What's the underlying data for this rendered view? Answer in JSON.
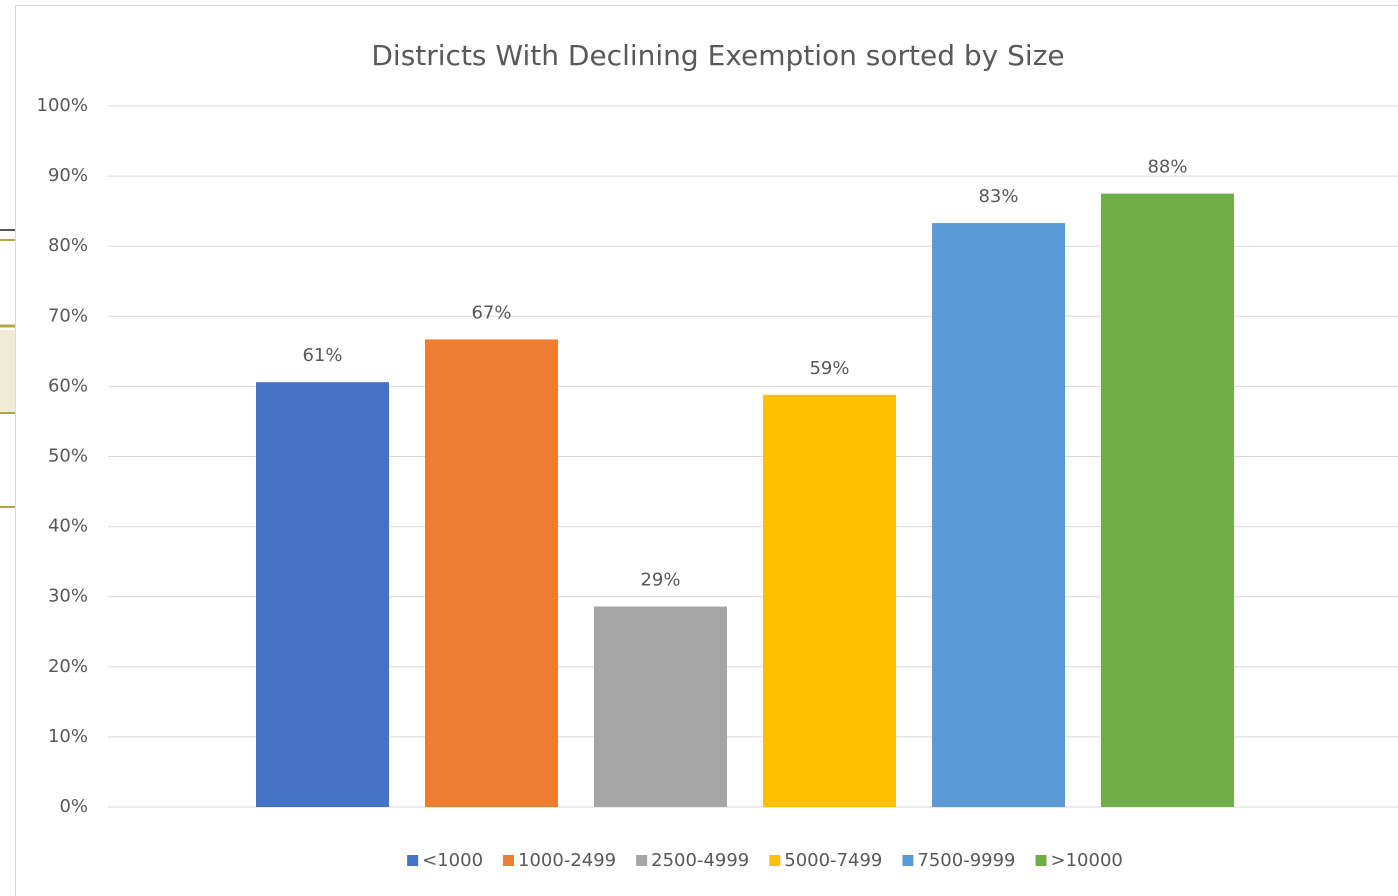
{
  "chart_data": {
    "type": "bar",
    "title": "Districts With Declining Exemption sorted by Size",
    "categories": [
      null
    ],
    "series": [
      {
        "name": "<1000",
        "color": "#4472c4",
        "values": [
          60.6
        ],
        "value_labels": [
          "61%"
        ]
      },
      {
        "name": "1000-2499",
        "color": "#ed7d31",
        "values": [
          66.7
        ],
        "value_labels": [
          "67%"
        ]
      },
      {
        "name": "2500-4999",
        "color": "#a5a5a5",
        "values": [
          28.6
        ],
        "value_labels": [
          "29%"
        ]
      },
      {
        "name": "5000-7499",
        "color": "#ffc000",
        "values": [
          58.8
        ],
        "value_labels": [
          "59%"
        ]
      },
      {
        "name": "7500-9999",
        "color": "#5b9bd5",
        "values": [
          83.3
        ],
        "value_labels": [
          "83%"
        ]
      },
      {
        "name": ">10000",
        "color": "#70ad47",
        "values": [
          87.5
        ],
        "value_labels": [
          "88%"
        ]
      }
    ],
    "ylim": [
      0,
      100
    ],
    "yticks": [
      {
        "value": 0,
        "label": "0%"
      },
      {
        "value": 10,
        "label": "10%"
      },
      {
        "value": 20,
        "label": "20%"
      },
      {
        "value": 30,
        "label": "30%"
      },
      {
        "value": 40,
        "label": "40%"
      },
      {
        "value": 50,
        "label": "50%"
      },
      {
        "value": 60,
        "label": "60%"
      },
      {
        "value": 70,
        "label": "70%"
      },
      {
        "value": 80,
        "label": "80%"
      },
      {
        "value": 90,
        "label": "90%"
      },
      {
        "value": 100,
        "label": "100%"
      }
    ],
    "grid": true,
    "legend": "bottom"
  }
}
